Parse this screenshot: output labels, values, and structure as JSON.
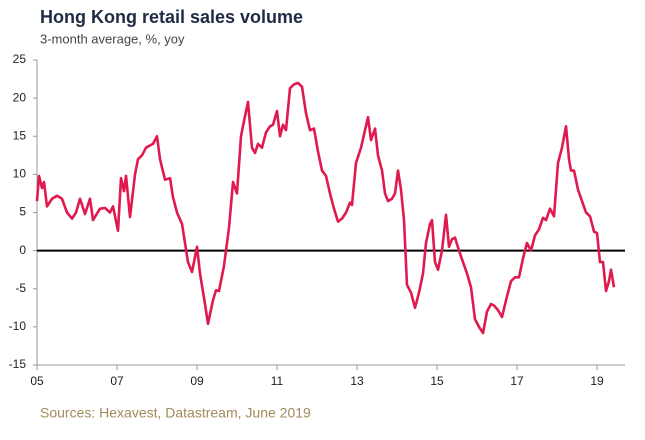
{
  "chart_data": {
    "type": "line",
    "title": "Hong Kong retail sales volume",
    "subtitle": "3-month average, %, yoy",
    "source": "Sources: Hexavest, Datastream, June 2019",
    "x": [
      2005.0,
      2005.05,
      2005.125,
      2005.175,
      2005.25,
      2005.375,
      2005.5,
      2005.625,
      2005.75,
      2005.875,
      2005.975,
      2006.075,
      2006.2,
      2006.325,
      2006.4,
      2006.575,
      2006.7,
      2006.825,
      2006.9,
      2007.025,
      2007.1,
      2007.175,
      2007.225,
      2007.325,
      2007.45,
      2007.525,
      2007.625,
      2007.725,
      2007.825,
      2007.9,
      2008.0,
      2008.075,
      2008.2,
      2008.325,
      2008.4,
      2008.5,
      2008.625,
      2008.7,
      2008.775,
      2008.875,
      2009.0,
      2009.075,
      2009.2,
      2009.275,
      2009.4,
      2009.475,
      2009.55,
      2009.675,
      2009.8,
      2009.9,
      2010.0,
      2010.1,
      2010.175,
      2010.275,
      2010.375,
      2010.45,
      2010.525,
      2010.625,
      2010.725,
      2010.825,
      2010.9,
      2011.0,
      2011.075,
      2011.15,
      2011.225,
      2011.325,
      2011.425,
      2011.525,
      2011.625,
      2011.725,
      2011.825,
      2011.925,
      2012.025,
      2012.125,
      2012.225,
      2012.325,
      2012.425,
      2012.525,
      2012.625,
      2012.725,
      2012.825,
      2012.875,
      2012.975,
      2013.1,
      2013.275,
      2013.35,
      2013.45,
      2013.525,
      2013.625,
      2013.7,
      2013.775,
      2013.875,
      2013.95,
      2014.025,
      2014.1,
      2014.175,
      2014.25,
      2014.35,
      2014.45,
      2014.55,
      2014.65,
      2014.725,
      2014.825,
      2014.875,
      2014.95,
      2015.025,
      2015.125,
      2015.225,
      2015.3,
      2015.375,
      2015.45,
      2015.55,
      2015.65,
      2015.75,
      2015.85,
      2015.95,
      2016.05,
      2016.15,
      2016.25,
      2016.35,
      2016.425,
      2016.525,
      2016.625,
      2016.75,
      2016.85,
      2016.95,
      2017.05,
      2017.15,
      2017.25,
      2017.35,
      2017.45,
      2017.55,
      2017.65,
      2017.725,
      2017.825,
      2017.925,
      2018.025,
      2018.125,
      2018.225,
      2018.3,
      2018.35,
      2018.425,
      2018.525,
      2018.625,
      2018.725,
      2018.825,
      2018.925,
      2019.0,
      2019.075,
      2019.15,
      2019.225,
      2019.3,
      2019.35,
      2019.425
    ],
    "series": [
      {
        "name": "Hong Kong retail sales volume",
        "color": "#e0194f",
        "values": [
          6.5,
          9.8,
          8.2,
          9.0,
          5.8,
          6.8,
          7.2,
          6.8,
          5.0,
          4.2,
          5.0,
          6.8,
          4.8,
          6.8,
          4.0,
          5.5,
          5.6,
          5.0,
          5.8,
          2.6,
          9.5,
          7.8,
          9.8,
          4.4,
          10.0,
          12.0,
          12.5,
          13.5,
          13.8,
          14.0,
          15.0,
          12.0,
          9.3,
          9.5,
          7.0,
          5.0,
          3.5,
          1.0,
          -1.5,
          -2.8,
          0.5,
          -3.0,
          -7.0,
          -9.6,
          -6.5,
          -5.2,
          -5.3,
          -2.0,
          3.0,
          9.0,
          7.5,
          15.0,
          17.0,
          19.5,
          13.5,
          12.8,
          14.0,
          13.5,
          15.5,
          16.3,
          16.5,
          18.3,
          15.0,
          16.5,
          15.8,
          21.3,
          21.8,
          22.0,
          21.5,
          18.0,
          15.8,
          16.0,
          13.0,
          10.5,
          9.8,
          7.5,
          5.5,
          3.8,
          4.2,
          5.0,
          6.3,
          6.0,
          11.5,
          13.5,
          17.5,
          14.5,
          16.0,
          12.5,
          10.5,
          7.5,
          6.5,
          6.8,
          7.5,
          10.5,
          8.0,
          4.0,
          -4.5,
          -5.5,
          -7.5,
          -5.5,
          -3.0,
          1.0,
          3.5,
          4.0,
          -1.5,
          -2.5,
          0.0,
          4.7,
          0.5,
          1.5,
          1.7,
          0.0,
          -1.5,
          -3.0,
          -4.8,
          -9.0,
          -10.0,
          -10.8,
          -8.0,
          -7.0,
          -7.2,
          -7.8,
          -8.7,
          -6.0,
          -4.0,
          -3.5,
          -3.5,
          -1.0,
          1.0,
          0.0,
          2.0,
          2.8,
          4.3,
          4.0,
          5.5,
          4.5,
          11.5,
          13.5,
          16.3,
          12.0,
          10.5,
          10.5,
          8.0,
          6.5,
          5.0,
          4.5,
          2.5,
          2.3,
          -1.5,
          -1.5,
          -5.3,
          -4.0,
          -2.5,
          -4.8
        ]
      }
    ],
    "xlim": [
      2005,
      2019.7
    ],
    "xticks": [
      {
        "value": 2005,
        "label": "05"
      },
      {
        "value": 2007,
        "label": "07"
      },
      {
        "value": 2009,
        "label": "09"
      },
      {
        "value": 2011,
        "label": "11"
      },
      {
        "value": 2013,
        "label": "13"
      },
      {
        "value": 2015,
        "label": "15"
      },
      {
        "value": 2017,
        "label": "17"
      },
      {
        "value": 2019,
        "label": "19"
      }
    ],
    "ylim": [
      -15,
      25
    ],
    "yticks": [
      -15,
      -10,
      -5,
      0,
      5,
      10,
      15,
      20,
      25
    ],
    "grid": false
  }
}
